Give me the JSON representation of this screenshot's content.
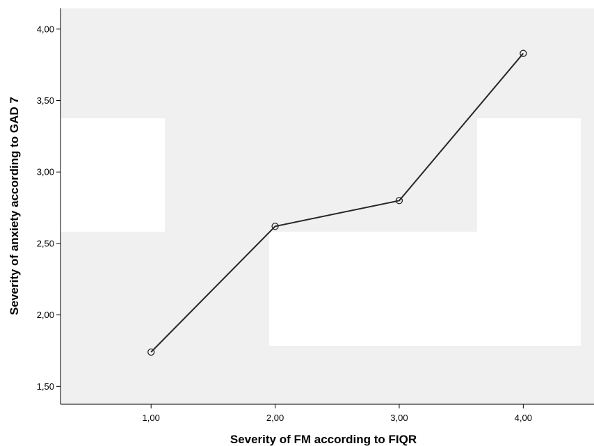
{
  "chart_data": {
    "type": "line",
    "title": "",
    "xlabel": "Severity of FM according to FIQR",
    "ylabel": "Severity of anxiety according to GAD 7",
    "x": [
      1,
      2,
      3,
      4
    ],
    "series": [
      {
        "values": [
          1.74,
          2.62,
          2.8,
          3.83
        ]
      }
    ],
    "xlim": [
      0.27,
      4.57
    ],
    "ylim": [
      1.375,
      4.145
    ],
    "xticks": [
      1,
      2,
      3,
      4
    ],
    "xtick_labels": [
      "1,00",
      "2,00",
      "3,00",
      "4,00"
    ],
    "yticks": [
      1.5,
      2.0,
      2.5,
      3.0,
      3.5,
      4.0
    ],
    "ytick_labels": [
      "1,50",
      "2,00",
      "2,50",
      "3,00",
      "3,50",
      "4,00"
    ],
    "grid": false,
    "legend": "none",
    "marker": "open-circle",
    "colors": {
      "plot_background": "#f0f0f0",
      "line": "#262626",
      "axis": "#000000",
      "occluding_patch": "#ffffff"
    }
  }
}
